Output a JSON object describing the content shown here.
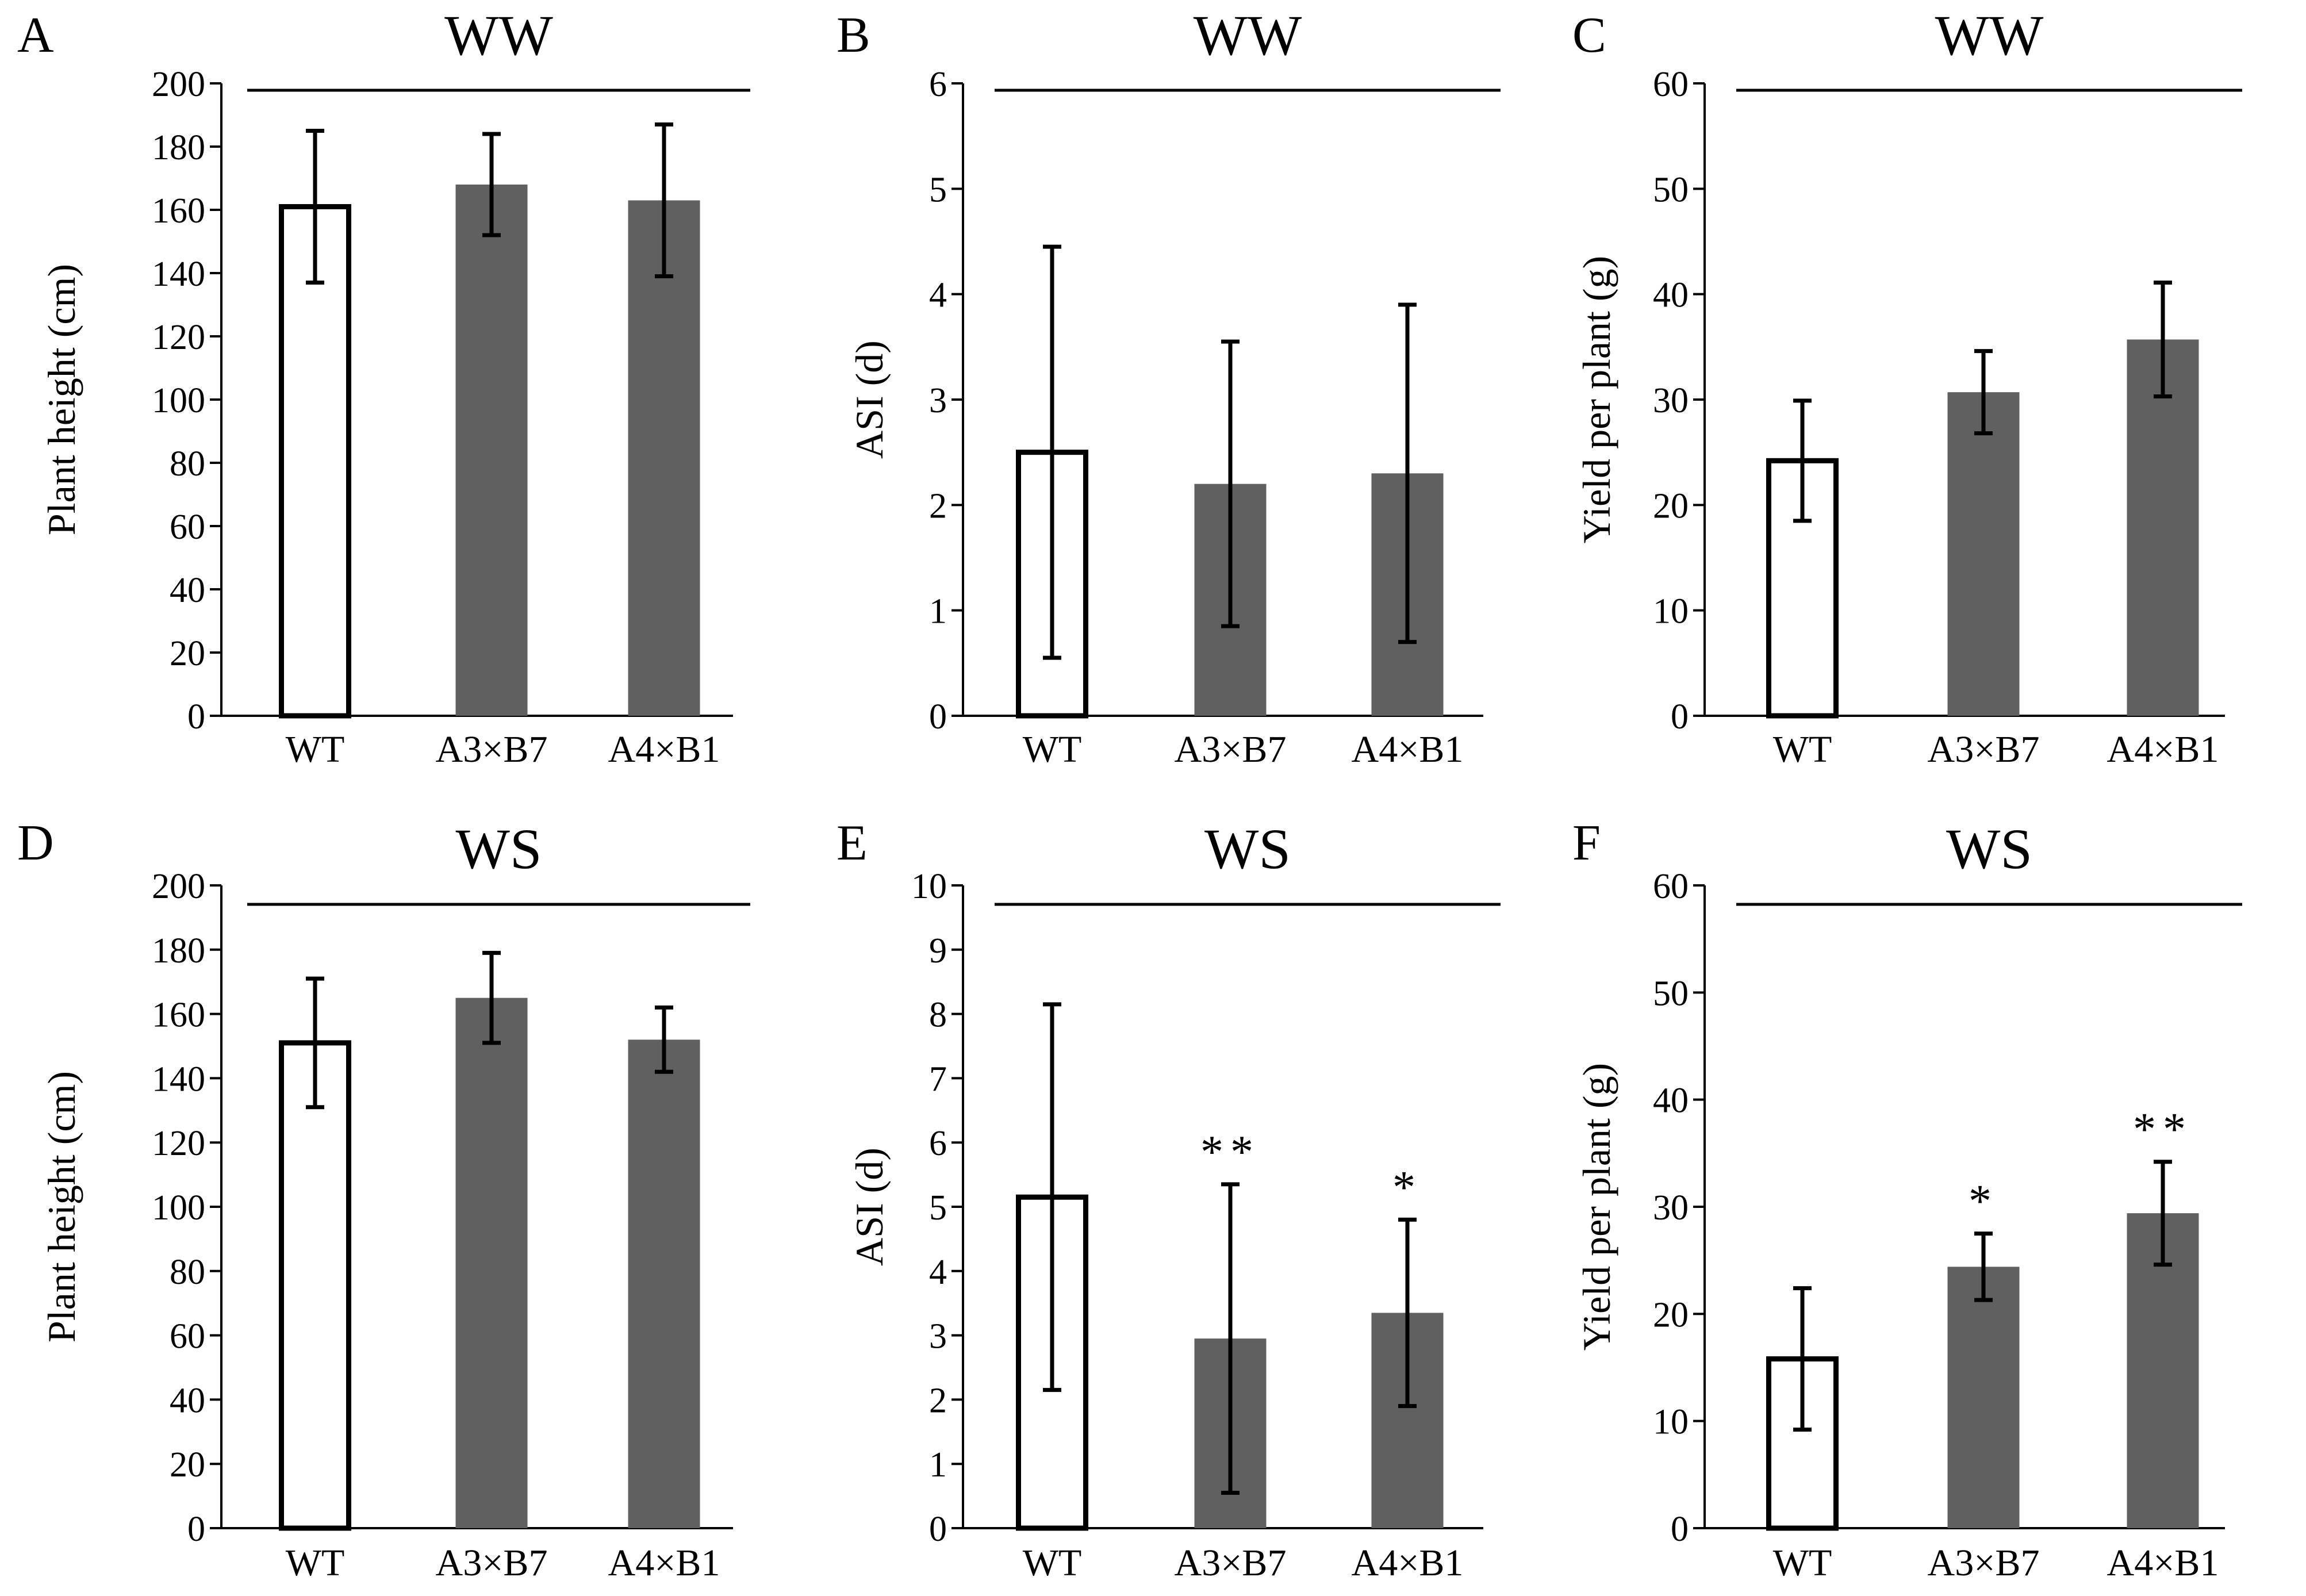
{
  "figure": {
    "colors": {
      "wt_fill": "#ffffff",
      "transgenic_fill": "#606060",
      "stroke": "#000000"
    }
  },
  "chart_data": [
    {
      "panel": "A",
      "condition": "WW",
      "type": "bar",
      "categories": [
        "WT",
        "A3×B7",
        "A4×B1"
      ],
      "values": [
        161,
        168,
        163
      ],
      "errors": [
        24,
        16,
        24
      ],
      "ylabel": "Plant height (cm)",
      "ylim": [
        0,
        200
      ],
      "yticks": [
        "0",
        "20",
        "40",
        "60",
        "80",
        "100",
        "120",
        "140",
        "160",
        "180",
        "200"
      ],
      "significance": [
        "",
        "",
        ""
      ]
    },
    {
      "panel": "B",
      "condition": "WW",
      "type": "bar",
      "categories": [
        "WT",
        "A3×B7",
        "A4×B1"
      ],
      "values": [
        2.5,
        2.2,
        2.3
      ],
      "errors": [
        1.95,
        1.35,
        1.6
      ],
      "ylabel": "ASI (d)",
      "ylim": [
        0,
        6
      ],
      "yticks": [
        "0",
        "1",
        "2",
        "3",
        "4",
        "5",
        "6"
      ],
      "significance": [
        "",
        "",
        ""
      ]
    },
    {
      "panel": "C",
      "condition": "WW",
      "type": "bar",
      "categories": [
        "WT",
        "A3×B7",
        "A4×B1"
      ],
      "values": [
        24.2,
        30.7,
        35.7
      ],
      "errors": [
        5.7,
        3.9,
        5.4
      ],
      "ylabel": "Yield per plant (g)",
      "ylim": [
        0,
        60
      ],
      "yticks": [
        "0",
        "10",
        "20",
        "30",
        "40",
        "50",
        "60"
      ],
      "significance": [
        "",
        "",
        ""
      ]
    },
    {
      "panel": "D",
      "condition": "WS",
      "type": "bar",
      "categories": [
        "WT",
        "A3×B7",
        "A4×B1"
      ],
      "values": [
        151,
        165,
        152
      ],
      "errors": [
        20,
        14,
        10
      ],
      "ylabel": "Plant height (cm)",
      "ylim": [
        0,
        200
      ],
      "yticks": [
        "0",
        "20",
        "40",
        "60",
        "80",
        "100",
        "120",
        "140",
        "160",
        "180",
        "200"
      ],
      "significance": [
        "",
        "",
        ""
      ]
    },
    {
      "panel": "E",
      "condition": "WS",
      "type": "bar",
      "categories": [
        "WT",
        "A3×B7",
        "A4×B1"
      ],
      "values": [
        5.15,
        2.95,
        3.35
      ],
      "errors": [
        3.0,
        2.4,
        1.45
      ],
      "ylabel": "ASI (d)",
      "ylim": [
        0,
        10
      ],
      "yticks": [
        "0",
        "1",
        "2",
        "3",
        "4",
        "5",
        "6",
        "7",
        "8",
        "9",
        "10"
      ],
      "significance": [
        "",
        "**",
        "*"
      ]
    },
    {
      "panel": "F",
      "condition": "WS",
      "type": "bar",
      "categories": [
        "WT",
        "A3×B7",
        "A4×B1"
      ],
      "values": [
        15.8,
        24.4,
        29.4
      ],
      "errors": [
        6.6,
        3.1,
        4.8
      ],
      "ylabel": "Yield per plant (g)",
      "ylim": [
        0,
        60
      ],
      "yticks": [
        "0",
        "10",
        "20",
        "30",
        "40",
        "50",
        "60"
      ],
      "significance": [
        "",
        "*",
        "**"
      ]
    }
  ]
}
